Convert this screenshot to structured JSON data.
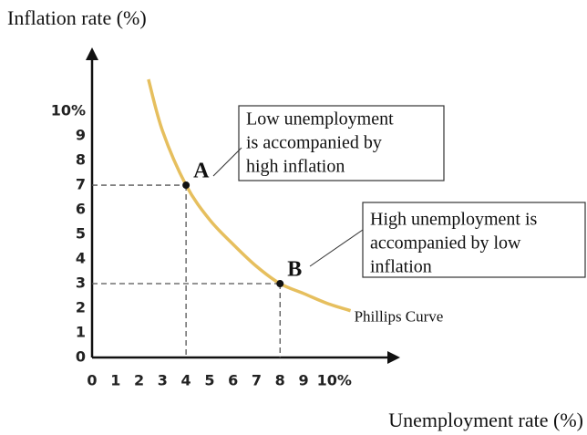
{
  "chart_data": {
    "type": "line",
    "y_axis_label": "Inflation rate (%)",
    "x_axis_label": "Unemployment rate (%)",
    "xlim": [
      0,
      12.8
    ],
    "ylim": [
      0,
      12.3
    ],
    "xticks": [
      0,
      1,
      2,
      3,
      4,
      5,
      6,
      7,
      8,
      9,
      {
        "value": 10,
        "label": "10%"
      }
    ],
    "yticks": [
      0,
      1,
      2,
      3,
      4,
      5,
      6,
      7,
      8,
      9,
      {
        "value": 10,
        "label": "10%"
      }
    ],
    "grid": false,
    "series": [
      {
        "name": "Phillips Curve",
        "color": "#e6bf5e",
        "x": [
          2.4,
          3,
          4,
          5,
          6,
          7,
          8,
          9,
          10,
          11
        ],
        "values": [
          11.3,
          9.2,
          7,
          5.6,
          4.6,
          3.7,
          3,
          2.6,
          2.2,
          1.9
        ]
      }
    ],
    "points": [
      {
        "name": "A",
        "x": 4,
        "y": 7,
        "note": [
          "Low unemployment",
          "is  accompanied by",
          "high inflation"
        ]
      },
      {
        "name": "B",
        "x": 8,
        "y": 3,
        "note": [
          "High unemployment is",
          "accompanied  by  low",
          "inflation"
        ]
      }
    ]
  }
}
